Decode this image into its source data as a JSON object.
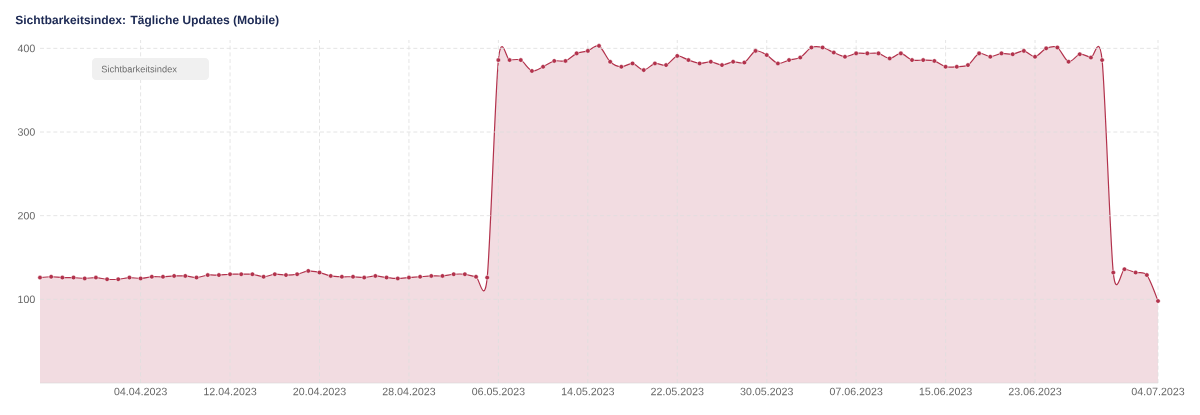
{
  "chart_data": {
    "type": "area",
    "title": "Sichtbarkeitsindex: Tägliche Updates (Mobile)",
    "annotations": [
      "Sichtbarkeitsindex"
    ],
    "x": [
      "2023-03-26",
      "2023-03-27",
      "2023-03-28",
      "2023-03-29",
      "2023-03-30",
      "2023-03-31",
      "2023-04-01",
      "2023-04-02",
      "2023-04-03",
      "2023-04-04",
      "2023-04-05",
      "2023-04-06",
      "2023-04-07",
      "2023-04-08",
      "2023-04-09",
      "2023-04-10",
      "2023-04-11",
      "2023-04-12",
      "2023-04-13",
      "2023-04-14",
      "2023-04-15",
      "2023-04-16",
      "2023-04-17",
      "2023-04-18",
      "2023-04-19",
      "2023-04-20",
      "2023-04-21",
      "2023-04-22",
      "2023-04-23",
      "2023-04-24",
      "2023-04-25",
      "2023-04-26",
      "2023-04-27",
      "2023-04-28",
      "2023-04-29",
      "2023-04-30",
      "2023-05-01",
      "2023-05-02",
      "2023-05-03",
      "2023-05-04",
      "2023-05-05",
      "2023-05-06",
      "2023-05-07",
      "2023-05-08",
      "2023-05-09",
      "2023-05-10",
      "2023-05-11",
      "2023-05-12",
      "2023-05-13",
      "2023-05-14",
      "2023-05-15",
      "2023-05-16",
      "2023-05-17",
      "2023-05-18",
      "2023-05-19",
      "2023-05-20",
      "2023-05-21",
      "2023-05-22",
      "2023-05-23",
      "2023-05-24",
      "2023-05-25",
      "2023-05-26",
      "2023-05-27",
      "2023-05-28",
      "2023-05-29",
      "2023-05-30",
      "2023-05-31",
      "2023-06-01",
      "2023-06-02",
      "2023-06-03",
      "2023-06-04",
      "2023-06-05",
      "2023-06-06",
      "2023-06-07",
      "2023-06-08",
      "2023-06-09",
      "2023-06-10",
      "2023-06-11",
      "2023-06-12",
      "2023-06-13",
      "2023-06-14",
      "2023-06-15",
      "2023-06-16",
      "2023-06-17",
      "2023-06-18",
      "2023-06-19",
      "2023-06-20",
      "2023-06-21",
      "2023-06-22",
      "2023-06-23",
      "2023-06-24",
      "2023-06-25",
      "2023-06-26",
      "2023-06-27",
      "2023-06-28",
      "2023-06-29",
      "2023-06-30",
      "2023-07-01",
      "2023-07-02",
      "2023-07-03",
      "2023-07-04"
    ],
    "series": [
      {
        "color": "#b2324c",
        "values": [
          126,
          127,
          126,
          126,
          125,
          126,
          124,
          124,
          126,
          125,
          127,
          127,
          128,
          128,
          126,
          129,
          129,
          130,
          130,
          130,
          127,
          130,
          129,
          130,
          134,
          132,
          128,
          127,
          127,
          126,
          128,
          126,
          125,
          126,
          127,
          128,
          128,
          130,
          130,
          127,
          126,
          386,
          386,
          386,
          373,
          378,
          385,
          385,
          394,
          397,
          403,
          384,
          378,
          382,
          374,
          382,
          380,
          391,
          386,
          382,
          384,
          380,
          384,
          383,
          397,
          392,
          382,
          386,
          389,
          401,
          401,
          395,
          390,
          394,
          394,
          394,
          388,
          394,
          386,
          386,
          385,
          378,
          378,
          380,
          394,
          390,
          394,
          393,
          397,
          390,
          400,
          401,
          384,
          393,
          389,
          386,
          132,
          136,
          132,
          129,
          98
        ]
      }
    ],
    "xlim": [
      "2023-03-26",
      "2023-07-04"
    ],
    "ylim": [
      0,
      410
    ],
    "xticks": [
      {
        "value": "2023-04-04",
        "label": "04.04.2023"
      },
      {
        "value": "2023-04-12",
        "label": "12.04.2023"
      },
      {
        "value": "2023-04-20",
        "label": "20.04.2023"
      },
      {
        "value": "2023-04-28",
        "label": "28.04.2023"
      },
      {
        "value": "2023-05-06",
        "label": "06.05.2023"
      },
      {
        "value": "2023-05-14",
        "label": "14.05.2023"
      },
      {
        "value": "2023-05-22",
        "label": "22.05.2023"
      },
      {
        "value": "2023-05-30",
        "label": "30.05.2023"
      },
      {
        "value": "2023-06-07",
        "label": "07.06.2023"
      },
      {
        "value": "2023-06-15",
        "label": "15.06.2023"
      },
      {
        "value": "2023-06-23",
        "label": "23.06.2023"
      },
      {
        "value": "2023-07-04",
        "label": "04.07.2023"
      }
    ],
    "yticks": [
      100,
      200,
      300,
      400
    ],
    "grid": true,
    "marker": "circle",
    "line_style": "solid"
  }
}
